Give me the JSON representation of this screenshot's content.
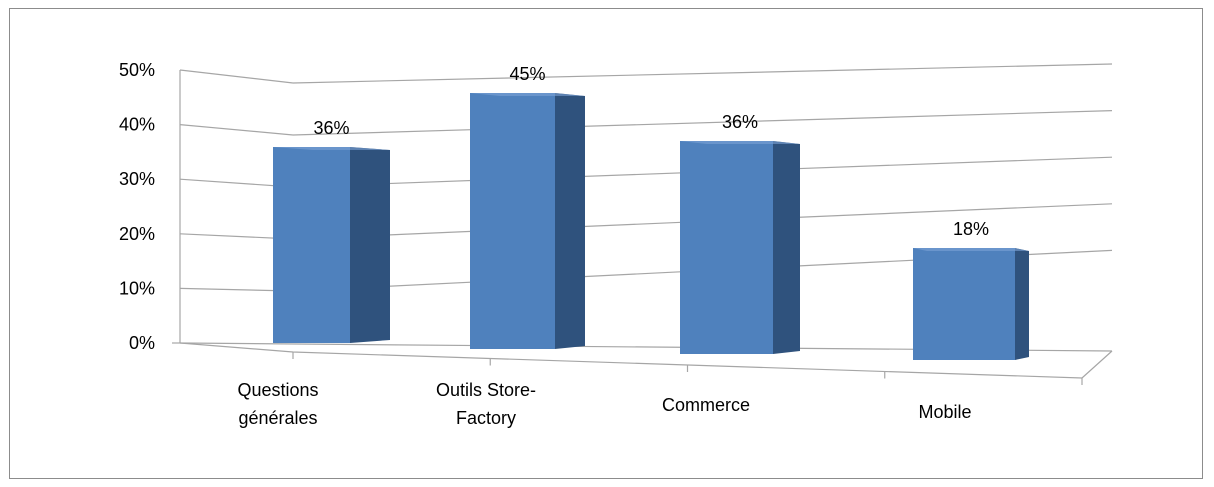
{
  "chart_data": {
    "type": "bar",
    "style": "3d-column",
    "title": "",
    "xlabel": "",
    "ylabel": "",
    "categories": [
      [
        "Questions",
        "générales"
      ],
      [
        "Outils Store-",
        "Factory"
      ],
      [
        "Commerce"
      ],
      [
        "Mobile"
      ]
    ],
    "values": [
      0.36,
      0.45,
      0.36,
      0.18
    ],
    "data_labels": [
      "36%",
      "45%",
      "36%",
      "18%"
    ],
    "yticks": [
      "0%",
      "10%",
      "20%",
      "30%",
      "40%",
      "50%"
    ],
    "ylim": [
      0,
      0.5
    ],
    "grid": true,
    "legend": "none",
    "colors": {
      "bar_front": "#4f81bd",
      "bar_side": "#2f527d",
      "bar_top": "#7da3d5",
      "grid": "#a6a6a6"
    }
  }
}
